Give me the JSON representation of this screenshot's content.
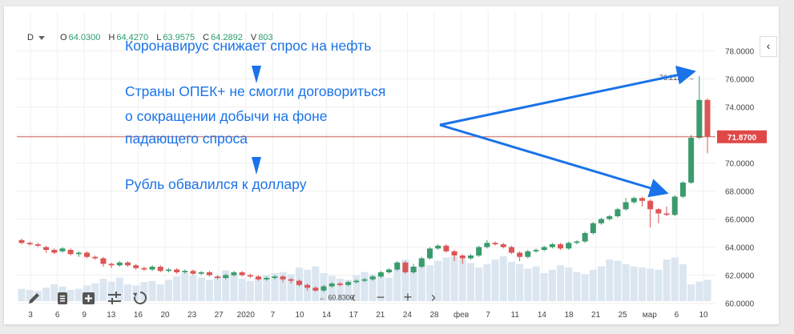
{
  "header": {
    "timeframe": "D",
    "open_label": "O",
    "open": "64.0300",
    "high_label": "H",
    "high": "64.4270",
    "low_label": "L",
    "low": "63.9575",
    "close_label": "C",
    "close": "64.2892",
    "volume_label": "V",
    "volume": "803"
  },
  "collapse_label": "‹",
  "annotations": {
    "line1": "Коронавирус снижает спрос на нефть",
    "line2": "Страны ОПЕК+ не смогли договориться",
    "line3": "о сокращении добычи на фоне",
    "line4": "падающего спроса",
    "line5": "Рубль обвалился к доллару",
    "color": "#1a73e8"
  },
  "toolbar": {
    "draw_icon": "pencil-icon",
    "list_icon": "list-icon",
    "add_icon": "add-indicator-icon",
    "settings_icon": "sliders-icon",
    "reset_icon": "reset-icon"
  },
  "nav": {
    "prev": "‹",
    "zoom_out": "−",
    "zoom_in": "+",
    "next": "›"
  },
  "chart_data": {
    "type": "candlestick",
    "y_range": [
      59.0,
      79.0
    ],
    "y_ticks": [
      "78.0000",
      "76.0000",
      "74.0000",
      "72.0000",
      "70.0000",
      "68.0000",
      "66.0000",
      "64.0000",
      "62.0000",
      "60.0000"
    ],
    "x_ticks": [
      "3",
      "6",
      "9",
      "13",
      "16",
      "20",
      "23",
      "27",
      "2020",
      "7",
      "10",
      "14",
      "17",
      "21",
      "24",
      "28",
      "фев",
      "7",
      "11",
      "14",
      "18",
      "21",
      "25",
      "мар",
      "6",
      "10"
    ],
    "current_price": "71.8700",
    "max_label": "76.2129",
    "min_label": "60.8300",
    "colors": {
      "up": "#3a9b6c",
      "down": "#dd5555",
      "volume": "#dbe6f0",
      "price_line": "#c0392b"
    },
    "candles": [
      [
        64.5,
        64.3,
        64.6,
        64.2
      ],
      [
        64.3,
        64.2,
        64.4,
        64.1
      ],
      [
        64.2,
        64.1,
        64.3,
        64.0
      ],
      [
        64.0,
        63.8,
        64.1,
        63.6
      ],
      [
        63.8,
        63.6,
        63.9,
        63.5
      ],
      [
        63.7,
        63.9,
        64.0,
        63.6
      ],
      [
        63.8,
        63.5,
        63.9,
        63.4
      ],
      [
        63.5,
        63.6,
        63.7,
        63.3
      ],
      [
        63.6,
        63.3,
        63.7,
        63.2
      ],
      [
        63.3,
        63.2,
        63.4,
        63.1
      ],
      [
        63.2,
        62.8,
        63.3,
        62.6
      ],
      [
        62.8,
        62.7,
        62.9,
        62.5
      ],
      [
        62.7,
        62.9,
        63.0,
        62.6
      ],
      [
        62.9,
        62.7,
        63.0,
        62.6
      ],
      [
        62.7,
        62.5,
        62.8,
        62.4
      ],
      [
        62.5,
        62.4,
        62.6,
        62.3
      ],
      [
        62.4,
        62.6,
        62.7,
        62.3
      ],
      [
        62.6,
        62.3,
        62.7,
        62.2
      ],
      [
        62.3,
        62.4,
        62.5,
        62.2
      ],
      [
        62.4,
        62.2,
        62.5,
        62.1
      ],
      [
        62.2,
        62.3,
        62.4,
        62.1
      ],
      [
        62.3,
        62.1,
        62.4,
        62.0
      ],
      [
        62.1,
        62.2,
        62.3,
        62.0
      ],
      [
        62.2,
        62.0,
        62.3,
        61.9
      ],
      [
        61.9,
        61.8,
        62.0,
        61.7
      ],
      [
        61.8,
        62.0,
        62.1,
        61.7
      ],
      [
        62.0,
        62.2,
        62.3,
        61.9
      ],
      [
        62.2,
        62.0,
        62.3,
        61.9
      ],
      [
        62.0,
        61.9,
        62.1,
        61.8
      ],
      [
        61.9,
        61.7,
        62.0,
        61.6
      ],
      [
        61.7,
        61.8,
        61.9,
        61.6
      ],
      [
        61.8,
        61.9,
        62.0,
        61.7
      ],
      [
        61.9,
        61.7,
        62.0,
        61.5
      ],
      [
        61.7,
        61.6,
        61.8,
        61.4
      ],
      [
        61.6,
        61.3,
        61.7,
        61.2
      ],
      [
        61.3,
        61.1,
        61.4,
        60.9
      ],
      [
        61.1,
        60.9,
        61.2,
        60.8
      ],
      [
        60.9,
        61.2,
        61.3,
        60.8
      ],
      [
        61.2,
        61.4,
        61.5,
        61.1
      ],
      [
        61.4,
        61.3,
        61.5,
        61.2
      ],
      [
        61.3,
        61.5,
        61.6,
        61.2
      ],
      [
        61.5,
        61.6,
        61.7,
        61.4
      ],
      [
        61.6,
        61.7,
        61.8,
        61.5
      ],
      [
        61.7,
        61.9,
        62.0,
        61.6
      ],
      [
        61.9,
        62.2,
        62.3,
        61.8
      ],
      [
        62.2,
        62.4,
        62.5,
        62.1
      ],
      [
        62.4,
        62.9,
        63.0,
        62.3
      ],
      [
        62.9,
        62.2,
        63.0,
        62.1
      ],
      [
        62.2,
        62.6,
        62.8,
        62.1
      ],
      [
        62.6,
        63.2,
        63.3,
        62.5
      ],
      [
        63.2,
        63.9,
        64.0,
        63.1
      ],
      [
        63.9,
        64.1,
        64.2,
        63.8
      ],
      [
        64.1,
        63.7,
        64.2,
        63.6
      ],
      [
        63.7,
        63.4,
        63.8,
        63.0
      ],
      [
        63.4,
        63.2,
        63.5,
        62.8
      ],
      [
        63.2,
        63.4,
        63.5,
        63.1
      ],
      [
        63.4,
        64.0,
        64.1,
        63.3
      ],
      [
        64.0,
        64.3,
        64.5,
        63.9
      ],
      [
        64.3,
        64.2,
        64.4,
        64.1
      ],
      [
        64.2,
        64.0,
        64.3,
        63.9
      ],
      [
        64.0,
        63.6,
        64.1,
        63.5
      ],
      [
        63.6,
        63.3,
        63.7,
        63.0
      ],
      [
        63.3,
        63.7,
        63.8,
        63.2
      ],
      [
        63.7,
        63.8,
        63.9,
        63.6
      ],
      [
        63.8,
        64.0,
        64.1,
        63.7
      ],
      [
        64.0,
        64.2,
        64.3,
        63.9
      ],
      [
        64.2,
        63.9,
        64.3,
        63.8
      ],
      [
        63.9,
        64.3,
        64.4,
        63.8
      ],
      [
        64.3,
        64.4,
        64.5,
        64.2
      ],
      [
        64.4,
        65.0,
        65.1,
        64.3
      ],
      [
        65.0,
        65.7,
        65.8,
        64.9
      ],
      [
        65.7,
        66.0,
        66.1,
        65.6
      ],
      [
        66.0,
        66.2,
        66.3,
        65.9
      ],
      [
        66.2,
        66.7,
        66.8,
        66.1
      ],
      [
        66.7,
        67.2,
        67.5,
        66.6
      ],
      [
        67.2,
        67.5,
        67.6,
        67.1
      ],
      [
        67.5,
        67.3,
        67.6,
        66.9
      ],
      [
        67.3,
        66.7,
        67.4,
        65.4
      ],
      [
        66.7,
        66.4,
        66.8,
        65.7
      ],
      [
        66.4,
        66.3,
        66.9,
        66.2
      ],
      [
        66.3,
        67.6,
        67.7,
        66.2
      ],
      [
        67.6,
        68.6,
        68.7,
        67.5
      ],
      [
        68.6,
        71.8,
        72.0,
        68.5
      ],
      [
        71.8,
        74.5,
        76.2,
        71.7
      ],
      [
        74.5,
        71.9,
        74.6,
        70.7
      ]
    ],
    "volumes": [
      0.22,
      0.2,
      0.18,
      0.24,
      0.3,
      0.26,
      0.2,
      0.22,
      0.28,
      0.32,
      0.4,
      0.35,
      0.42,
      0.3,
      0.28,
      0.34,
      0.36,
      0.3,
      0.38,
      0.44,
      0.5,
      0.46,
      0.42,
      0.38,
      0.44,
      0.55,
      0.48,
      0.4,
      0.36,
      0.42,
      0.46,
      0.5,
      0.52,
      0.48,
      0.6,
      0.56,
      0.62,
      0.5,
      0.45,
      0.4,
      0.38,
      0.46,
      0.52,
      0.48,
      0.44,
      0.42,
      0.58,
      0.74,
      0.62,
      0.7,
      0.64,
      0.72,
      0.78,
      0.8,
      0.76,
      0.68,
      0.6,
      0.66,
      0.74,
      0.8,
      0.7,
      0.66,
      0.58,
      0.62,
      0.5,
      0.56,
      0.64,
      0.6,
      0.52,
      0.48,
      0.56,
      0.62,
      0.74,
      0.72,
      0.66,
      0.62,
      0.6,
      0.58,
      0.56,
      0.74,
      0.78,
      0.66,
      0.3,
      0.35,
      0.38
    ]
  }
}
